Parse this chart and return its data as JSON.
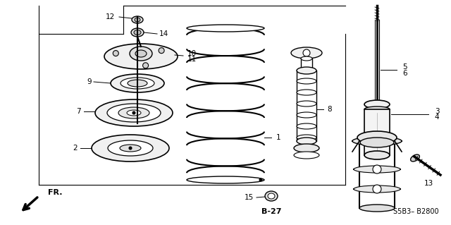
{
  "bg_color": "#ffffff",
  "lc": "#000000",
  "figsize": [
    6.4,
    3.19
  ],
  "dpi": 100,
  "page_ref": "B-27",
  "part_number": "S5B3– B2800",
  "fr_label": "FR."
}
